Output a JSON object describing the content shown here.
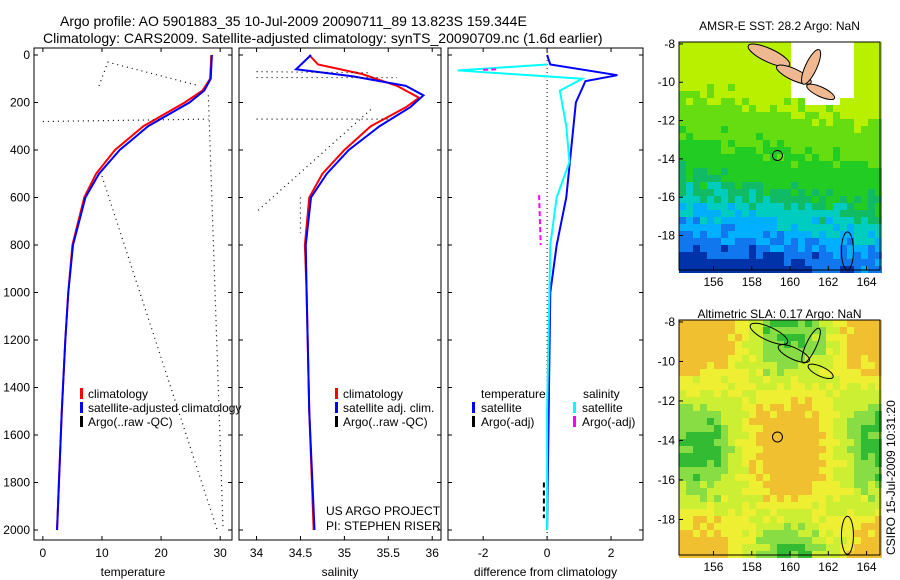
{
  "title_line1": "Argo profile: AO 5901883_35 10-Jul-2009 20090711_89 13.823S 159.344E",
  "title_line2": "Climatology: CARS2009. Satellite-adjusted climatology: synTS_20090709.nc (1.6d earlier)",
  "side_label": "CSIRO 15-Jul-2009 10:31:20",
  "project": [
    "US ARGO PROJECT",
    "PI: STEPHEN RISER"
  ],
  "colors": {
    "clim": "#ff0000",
    "sat": "#0000ff",
    "argo": "#000000",
    "sal_sat": "#00ffff",
    "sal_argo": "#ff00ff"
  },
  "chart_data": [
    {
      "type": "line",
      "name": "temperature",
      "xlabel": "temperature",
      "xlim": [
        -1.5,
        32
      ],
      "ylim": [
        2050,
        0
      ],
      "xticks": [
        0,
        10,
        20,
        30
      ],
      "yticks": [
        0,
        200,
        400,
        600,
        800,
        1000,
        1200,
        1400,
        1600,
        1800,
        2000
      ],
      "legend": [
        "climatology",
        "satellite-adjusted climatology",
        "Argo(..raw -QC)"
      ],
      "series": [
        {
          "name": "climatology",
          "color": "clim",
          "depth": [
            0,
            100,
            150,
            200,
            250,
            300,
            400,
            500,
            600,
            800,
            1000,
            1200,
            1500,
            2000
          ],
          "values": [
            28.5,
            28.3,
            27,
            24,
            20.5,
            17,
            12.2,
            9,
            7,
            5,
            4.3,
            3.8,
            3.2,
            2.4
          ]
        },
        {
          "name": "satellite-adjusted climatology",
          "color": "sat",
          "depth": [
            0,
            100,
            150,
            200,
            250,
            300,
            400,
            500,
            600,
            800,
            1000,
            1200,
            1500,
            2000
          ],
          "values": [
            28.6,
            28.4,
            27.3,
            24.8,
            21.3,
            17.8,
            13,
            9.5,
            7.2,
            5.1,
            4.3,
            3.8,
            3.2,
            2.4
          ]
        },
        {
          "name": "Argo(..raw -QC)",
          "color": "argo",
          "dotted": true,
          "segments": [
            [
              [
                9.5,
                130
              ],
              [
                11,
                30
              ],
              [
                26.5,
                130
              ]
            ],
            [
              [
                0,
                280
              ],
              [
                28,
                270
              ]
            ],
            [
              [
                10,
                510
              ],
              [
                29.5,
                2000
              ]
            ],
            [
              [
                28,
                170
              ],
              [
                30.5,
                2000
              ]
            ]
          ]
        }
      ]
    },
    {
      "type": "line",
      "name": "salinity",
      "xlabel": "salinity",
      "xlim": [
        33.8,
        36.1
      ],
      "ylim": [
        2050,
        0
      ],
      "xticks": [
        34,
        34.5,
        35,
        35.5,
        36
      ],
      "legend": [
        "climatology",
        "satellite adj. clim.",
        "Argo(..raw -QC)"
      ],
      "series": [
        {
          "name": "climatology",
          "color": "clim",
          "depth": [
            0,
            40,
            80,
            130,
            180,
            220,
            300,
            400,
            500,
            600,
            800,
            1000,
            1500,
            2000
          ],
          "values": [
            34.6,
            34.7,
            35.2,
            35.6,
            35.85,
            35.7,
            35.3,
            35.0,
            34.75,
            34.6,
            34.55,
            34.57,
            34.6,
            34.65
          ]
        },
        {
          "name": "satellite adj. clim.",
          "color": "sat",
          "depth": [
            0,
            60,
            90,
            130,
            170,
            220,
            300,
            400,
            500,
            600,
            800,
            1000,
            1500,
            2000
          ],
          "values": [
            34.62,
            34.45,
            35.1,
            35.7,
            35.9,
            35.75,
            35.4,
            35.05,
            34.8,
            34.62,
            34.56,
            34.57,
            34.6,
            34.66
          ]
        },
        {
          "name": "Argo(..raw -QC)",
          "color": "argo",
          "dotted": true,
          "segments": [
            [
              [
                34.0,
                70
              ],
              [
                35.3,
                75
              ]
            ],
            [
              [
                34.0,
                95
              ],
              [
                35.6,
                95
              ]
            ],
            [
              [
                34.0,
                270
              ],
              [
                35.5,
                270
              ]
            ],
            [
              [
                35.3,
                230
              ],
              [
                34.0,
                660
              ]
            ],
            [
              [
                34.5,
                600
              ],
              [
                34.5,
                750
              ]
            ]
          ]
        }
      ]
    },
    {
      "type": "line",
      "name": "difference",
      "xlabel": "difference from climatology",
      "xlim": [
        -3.1,
        3
      ],
      "ylim": [
        2050,
        0
      ],
      "xticks": [
        -2,
        0,
        2
      ],
      "legend_headers": [
        "temperature",
        "salinity"
      ],
      "legend": [
        "satellite",
        "Argo(-adj)",
        "satellite",
        "Argo(-adj)"
      ],
      "series": [
        {
          "name": "temperature satellite",
          "color": "sat",
          "depth": [
            0,
            40,
            85,
            110,
            200,
            400,
            600,
            800,
            1000,
            1500,
            2000
          ],
          "values": [
            0,
            0.1,
            2.2,
            1.2,
            0.9,
            0.75,
            0.6,
            0.3,
            0.1,
            0.05,
            0
          ]
        },
        {
          "name": "salinity satellite",
          "color": "sal_sat",
          "depth": [
            40,
            65,
            100,
            150,
            300,
            450,
            600,
            800,
            1500,
            2000
          ],
          "values": [
            0,
            -2.8,
            1.1,
            0.4,
            0.6,
            0.7,
            0.3,
            0.1,
            0,
            0
          ]
        },
        {
          "name": "temperature Argo(-adj)",
          "color": "argo",
          "dashed": true,
          "depth": [
            1800,
            1950
          ],
          "values": [
            -0.1,
            -0.1
          ]
        },
        {
          "name": "salinity Argo(-adj)",
          "color": "sal_argo",
          "dashed": true,
          "segments": [
            [
              [
                -0.25,
                590
              ],
              [
                -0.2,
                800
              ]
            ],
            [
              [
                -2.0,
                62
              ],
              [
                -1.5,
                60
              ]
            ]
          ]
        }
      ]
    },
    {
      "type": "heatmap",
      "title": "AMSR-E SST: 28.2 Argo: NaN",
      "xticks": [
        156,
        158,
        160,
        162,
        164
      ],
      "yticks": [
        -8,
        -10,
        -12,
        -14,
        -16,
        -18
      ],
      "xlim": [
        154.2,
        164.7
      ],
      "ylim": [
        -19.8,
        -7.9
      ],
      "marker": [
        159.344,
        -13.823
      ]
    },
    {
      "type": "heatmap",
      "title": "Altimetric SLA: 0.17 Argo: NaN",
      "xticks": [
        156,
        158,
        160,
        162,
        164
      ],
      "yticks": [
        -8,
        -10,
        -12,
        -14,
        -16,
        -18
      ],
      "xlim": [
        154.2,
        164.7
      ],
      "ylim": [
        -19.8,
        -7.9
      ],
      "marker": [
        159.344,
        -13.823
      ]
    }
  ]
}
